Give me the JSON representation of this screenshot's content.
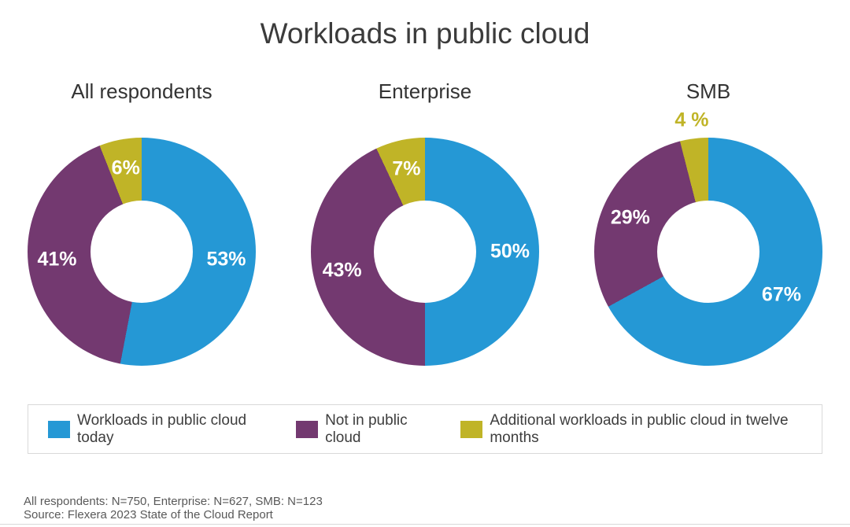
{
  "title": "Workloads in public cloud",
  "chart_data": {
    "type": "pie",
    "subtype": "donut",
    "direction": "clockwise",
    "start_angle_deg": 0,
    "legend_position": "bottom",
    "series": [
      {
        "name": "Workloads in public cloud today",
        "color": "#2598d5"
      },
      {
        "name": "Not in public cloud",
        "color": "#733970"
      },
      {
        "name": "Additional workloads in public cloud in twelve months",
        "color": "#c0b427"
      }
    ],
    "charts": [
      {
        "title": "All respondents",
        "values": [
          53,
          41,
          6
        ],
        "labels": [
          "53%",
          "41%",
          "6%"
        ],
        "label_placement": [
          "inside",
          "inside",
          "inside"
        ]
      },
      {
        "title": "Enterprise",
        "values": [
          50,
          43,
          7
        ],
        "labels": [
          "50%",
          "43%",
          "7%"
        ],
        "label_placement": [
          "inside",
          "inside",
          "inside"
        ]
      },
      {
        "title": "SMB",
        "values": [
          67,
          29,
          4
        ],
        "labels": [
          "67%",
          "29%",
          "4 %"
        ],
        "label_placement": [
          "inside",
          "inside",
          "outside"
        ]
      }
    ]
  },
  "footer": {
    "line1": "All respondents: N=750, Enterprise: N=627, SMB: N=123",
    "line2": "Source: Flexera 2023 State of the Cloud Report"
  }
}
